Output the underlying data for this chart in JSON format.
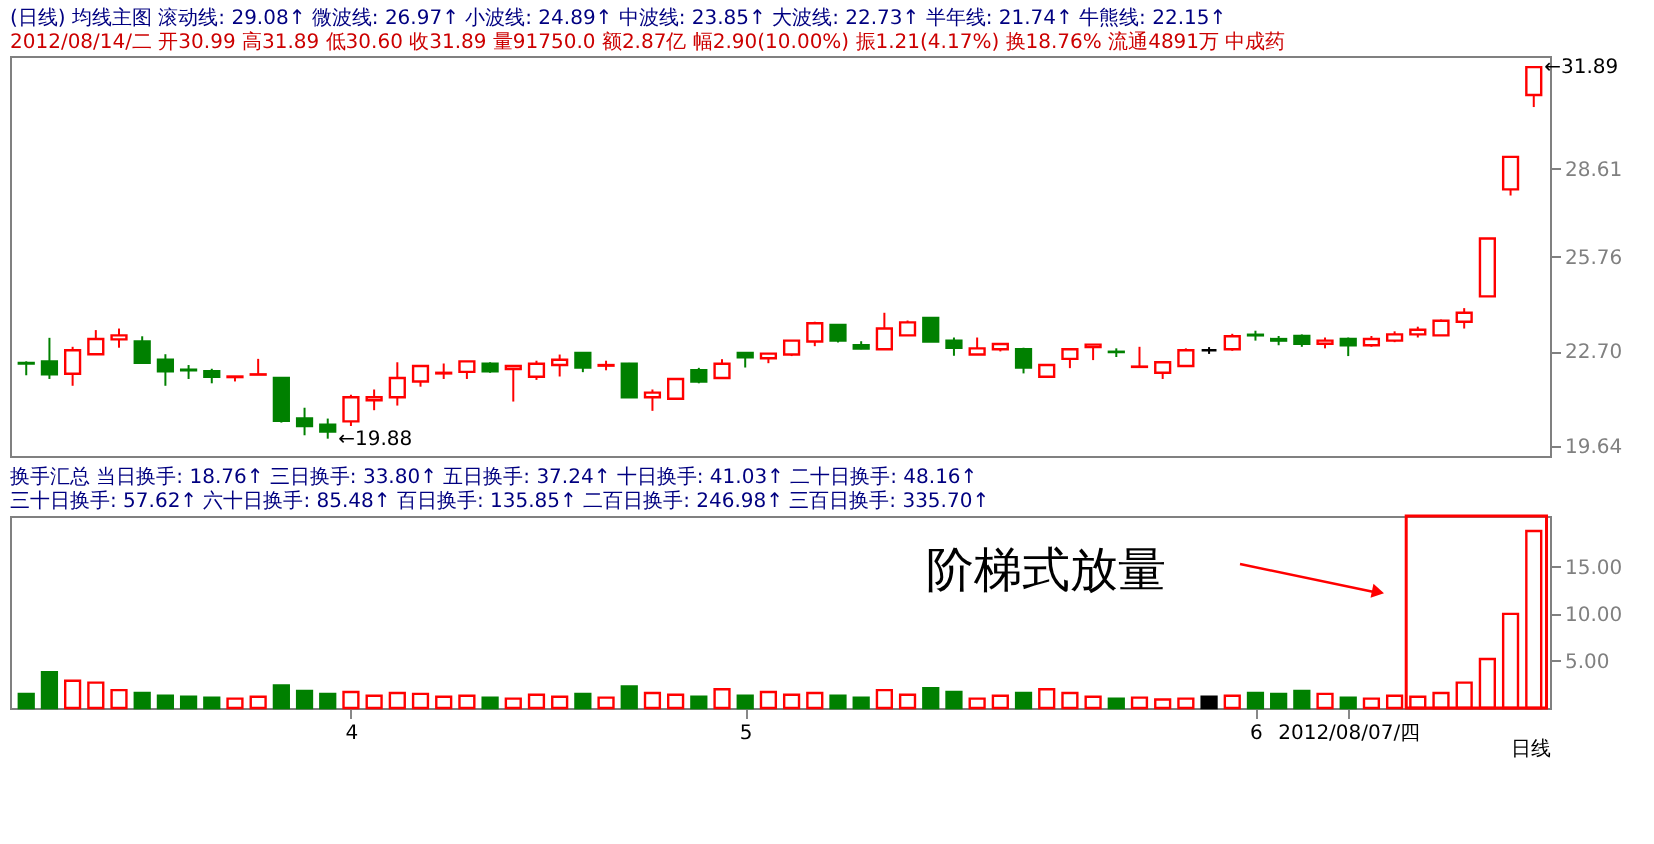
{
  "chart_data": [
    {
      "type": "candlestick",
      "title": "(日线) 均线主图  滚动线: 29.08↑  微波线: 26.97↑  小波线: 24.89↑  中波线: 23.85↑  大波线: 22.73↑  半年线: 21.74↑  牛熊线: 22.15↑",
      "subtitle": "2012/08/14/二 开30.99 高31.89 低30.60 收31.89 量91750.0 额2.87亿 幅2.90(10.00%) 振1.21(4.17%) 换18.76% 流通4891万 中成药",
      "ohlc": [
        [
          22.33,
          22.38,
          21.93,
          22.31
        ],
        [
          22.38,
          23.14,
          21.81,
          21.96
        ],
        [
          21.98,
          22.85,
          21.59,
          22.74
        ],
        [
          22.61,
          23.39,
          22.61,
          23.1
        ],
        [
          23.09,
          23.44,
          22.82,
          23.22
        ],
        [
          23.02,
          23.19,
          22.3,
          22.33
        ],
        [
          22.43,
          22.61,
          21.59,
          22.06
        ],
        [
          22.11,
          22.26,
          21.81,
          22.09
        ],
        [
          22.06,
          22.14,
          21.67,
          21.88
        ],
        [
          21.87,
          21.89,
          21.73,
          21.89
        ],
        [
          21.95,
          22.46,
          21.95,
          21.96
        ],
        [
          21.84,
          21.84,
          20.4,
          20.46
        ],
        [
          20.53,
          20.88,
          19.99,
          20.29
        ],
        [
          20.33,
          20.53,
          19.88,
          20.11
        ],
        [
          20.44,
          21.3,
          20.29,
          21.22
        ],
        [
          21.12,
          21.47,
          20.8,
          21.22
        ],
        [
          21.22,
          22.35,
          20.95,
          21.84
        ],
        [
          21.73,
          22.23,
          21.56,
          22.23
        ],
        [
          21.99,
          22.31,
          21.81,
          22.01
        ],
        [
          22.04,
          22.38,
          21.81,
          22.38
        ],
        [
          22.3,
          22.35,
          22.01,
          22.06
        ],
        [
          22.13,
          22.25,
          21.08,
          22.23
        ],
        [
          21.88,
          22.4,
          21.78,
          22.3
        ],
        [
          22.26,
          22.6,
          21.89,
          22.43
        ],
        [
          22.65,
          22.65,
          22.03,
          22.18
        ],
        [
          22.24,
          22.4,
          22.09,
          22.26
        ],
        [
          22.3,
          22.33,
          21.2,
          21.22
        ],
        [
          21.22,
          21.47,
          20.78,
          21.37
        ],
        [
          21.17,
          21.81,
          21.15,
          21.81
        ],
        [
          22.09,
          22.17,
          21.67,
          21.73
        ],
        [
          21.84,
          22.45,
          21.84,
          22.3
        ],
        [
          22.65,
          22.65,
          22.18,
          22.51
        ],
        [
          22.48,
          22.64,
          22.32,
          22.63
        ],
        [
          22.6,
          23.05,
          22.55,
          23.05
        ],
        [
          23.02,
          23.66,
          22.87,
          23.61
        ],
        [
          23.56,
          23.56,
          22.99,
          23.05
        ],
        [
          22.9,
          23.03,
          22.77,
          22.79
        ],
        [
          22.77,
          23.95,
          22.77,
          23.44
        ],
        [
          23.22,
          23.7,
          23.2,
          23.64
        ],
        [
          23.78,
          23.8,
          23.02,
          23.02
        ],
        [
          23.05,
          23.15,
          22.56,
          22.82
        ],
        [
          22.6,
          23.15,
          22.6,
          22.8
        ],
        [
          22.77,
          22.94,
          22.7,
          22.94
        ],
        [
          22.77,
          22.82,
          21.99,
          22.18
        ],
        [
          21.88,
          22.26,
          21.88,
          22.26
        ],
        [
          22.46,
          22.79,
          22.16,
          22.77
        ],
        [
          22.84,
          22.92,
          22.42,
          22.92
        ],
        [
          22.69,
          22.8,
          22.52,
          22.68
        ],
        [
          22.2,
          22.85,
          22.2,
          22.21
        ],
        [
          22.01,
          22.35,
          21.81,
          22.35
        ],
        [
          22.23,
          22.8,
          22.23,
          22.74
        ],
        [
          22.74,
          22.84,
          22.62,
          22.74
        ],
        [
          22.77,
          23.27,
          22.72,
          23.19
        ],
        [
          23.24,
          23.37,
          23.05,
          23.22
        ],
        [
          23.1,
          23.2,
          22.9,
          23.05
        ],
        [
          23.2,
          23.25,
          22.85,
          22.95
        ],
        [
          22.95,
          23.15,
          22.8,
          23.05
        ],
        [
          23.1,
          23.15,
          22.55,
          22.9
        ],
        [
          22.9,
          23.2,
          22.85,
          23.1
        ],
        [
          23.05,
          23.35,
          23.0,
          23.25
        ],
        [
          23.25,
          23.5,
          23.15,
          23.4
        ],
        [
          23.22,
          23.73,
          23.22,
          23.69
        ],
        [
          23.66,
          24.1,
          23.44,
          23.95
        ],
        [
          24.48,
          26.35,
          24.48,
          26.35
        ],
        [
          27.94,
          28.99,
          27.74,
          28.99
        ],
        [
          30.99,
          31.89,
          30.6,
          31.89
        ]
      ],
      "colors": [
        "#008000",
        "#008000",
        "#ff0000",
        "#ff0000",
        "#ff0000",
        "#008000",
        "#008000",
        "#008000",
        "#008000",
        "#ff0000",
        "#ff0000",
        "#008000",
        "#008000",
        "#008000",
        "#ff0000",
        "#ff0000",
        "#ff0000",
        "#ff0000",
        "#ff0000",
        "#ff0000",
        "#008000",
        "#ff0000",
        "#ff0000",
        "#ff0000",
        "#008000",
        "#ff0000",
        "#008000",
        "#ff0000",
        "#ff0000",
        "#008000",
        "#ff0000",
        "#008000",
        "#ff0000",
        "#ff0000",
        "#ff0000",
        "#008000",
        "#008000",
        "#ff0000",
        "#ff0000",
        "#008000",
        "#008000",
        "#ff0000",
        "#ff0000",
        "#008000",
        "#ff0000",
        "#ff0000",
        "#ff0000",
        "#008000",
        "#ff0000",
        "#ff0000",
        "#ff0000",
        "#000000",
        "#ff0000",
        "#008000",
        "#008000",
        "#008000",
        "#ff0000",
        "#008000",
        "#ff0000",
        "#ff0000",
        "#ff0000",
        "#ff0000",
        "#ff0000",
        "#ff0000",
        "#ff0000",
        "#ff0000"
      ],
      "ylim": [
        19.32,
        32.25
      ],
      "yticks": [
        {
          "value": 19.64,
          "label": "19.64"
        },
        {
          "value": 22.7,
          "label": "22.70"
        },
        {
          "value": 25.76,
          "label": "25.76"
        },
        {
          "value": 28.61,
          "label": "28.61"
        }
      ],
      "annotations": [
        "←19.88",
        "←31.89"
      ],
      "grid": false
    },
    {
      "type": "bar",
      "title": "换手汇总  当日换手: 18.76↑  三日换手: 33.80↑  五日换手: 37.24↑  十日换手: 41.03↑  二十日换手: 48.16↑  三十日换手: 57.62↑  六十日换手: 85.48↑  百日换手: 135.85↑  二百日换手: 246.98↑  三百日换手: 335.70↑",
      "xlabel": "日线",
      "categories": [
        null,
        null,
        null,
        null,
        null,
        null,
        null,
        null,
        null,
        null,
        null,
        null,
        null,
        null,
        "4",
        null,
        null,
        null,
        null,
        null,
        null,
        null,
        null,
        null,
        null,
        null,
        null,
        null,
        null,
        null,
        null,
        "5",
        null,
        null,
        null,
        null,
        null,
        null,
        null,
        null,
        null,
        null,
        null,
        null,
        null,
        null,
        null,
        null,
        null,
        null,
        null,
        null,
        null,
        "6",
        null,
        null,
        null,
        "2012/08/07/四",
        null,
        null,
        null,
        null,
        null,
        null,
        null,
        null
      ],
      "values": [
        1.5,
        3.8,
        2.9,
        2.7,
        1.9,
        1.6,
        1.3,
        1.2,
        1.1,
        1.0,
        1.2,
        2.4,
        1.8,
        1.5,
        1.7,
        1.3,
        1.6,
        1.5,
        1.2,
        1.3,
        1.1,
        1.0,
        1.4,
        1.2,
        1.5,
        1.1,
        2.3,
        1.6,
        1.4,
        1.2,
        2.0,
        1.3,
        1.7,
        1.4,
        1.6,
        1.3,
        1.1,
        1.9,
        1.4,
        2.1,
        1.7,
        1.0,
        1.3,
        1.6,
        2.0,
        1.6,
        1.2,
        1.0,
        1.1,
        0.9,
        1.0,
        1.2,
        1.3,
        1.6,
        1.5,
        1.8,
        1.5,
        1.1,
        1.0,
        1.3,
        1.2,
        1.6,
        2.7,
        5.2,
        10.0,
        18.8
      ],
      "colors": [
        "#008000",
        "#008000",
        "#ff0000",
        "#ff0000",
        "#ff0000",
        "#008000",
        "#008000",
        "#008000",
        "#008000",
        "#ff0000",
        "#ff0000",
        "#008000",
        "#008000",
        "#008000",
        "#ff0000",
        "#ff0000",
        "#ff0000",
        "#ff0000",
        "#ff0000",
        "#ff0000",
        "#008000",
        "#ff0000",
        "#ff0000",
        "#ff0000",
        "#008000",
        "#ff0000",
        "#008000",
        "#ff0000",
        "#ff0000",
        "#008000",
        "#ff0000",
        "#008000",
        "#ff0000",
        "#ff0000",
        "#ff0000",
        "#008000",
        "#008000",
        "#ff0000",
        "#ff0000",
        "#008000",
        "#008000",
        "#ff0000",
        "#ff0000",
        "#008000",
        "#ff0000",
        "#ff0000",
        "#ff0000",
        "#008000",
        "#ff0000",
        "#ff0000",
        "#ff0000",
        "#000000",
        "#ff0000",
        "#008000",
        "#008000",
        "#008000",
        "#ff0000",
        "#008000",
        "#ff0000",
        "#ff0000",
        "#ff0000",
        "#ff0000",
        "#ff0000",
        "#ff0000",
        "#ff0000",
        "#ff0000"
      ],
      "ylim": [
        0,
        20.4
      ],
      "yticks": [
        {
          "value": 5,
          "label": "5.00"
        },
        {
          "value": 10,
          "label": "10.00"
        },
        {
          "value": 15,
          "label": "15.00"
        }
      ],
      "annotations": [
        "阶梯式放量"
      ],
      "grid": false
    }
  ]
}
